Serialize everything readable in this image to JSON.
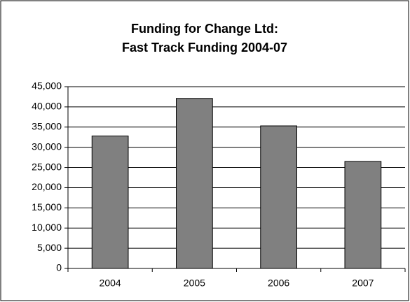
{
  "chart_data": {
    "type": "bar",
    "title": [
      "Funding for Change Ltd:",
      "Fast Track Funding 2004-07"
    ],
    "categories": [
      "2004",
      "2005",
      "2006",
      "2007"
    ],
    "values": [
      32800,
      42100,
      35300,
      26500
    ],
    "color": "#808080",
    "ylim": [
      0,
      45000
    ],
    "yticks": [
      0,
      {
        "value": 5000,
        "label": "5,000"
      },
      {
        "value": 10000,
        "label": "10,000"
      },
      {
        "value": 15000,
        "label": "15,000"
      },
      {
        "value": 20000,
        "label": "20,000"
      },
      {
        "value": 25000,
        "label": "25,000"
      },
      {
        "value": 30000,
        "label": "30,000"
      },
      {
        "value": 35000,
        "label": "35,000"
      },
      {
        "value": 40000,
        "label": "40,000"
      },
      {
        "value": 45000,
        "label": "45,000"
      }
    ],
    "grid": true
  }
}
